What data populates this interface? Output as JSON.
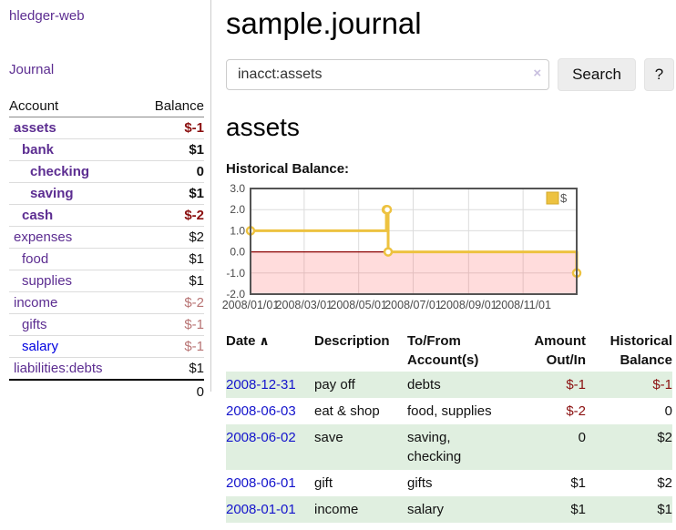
{
  "colors": {
    "purple": "#5c2d91",
    "blue": "#0000e0",
    "link_blue": "#1414cc",
    "neg_dark": "#8b1010",
    "neg_light": "#b87474",
    "row_green": "#e0efe0"
  },
  "app": {
    "title": "hledger-web"
  },
  "sidebar": {
    "journal_link": "Journal",
    "accounts": {
      "headers": [
        "Account",
        "Balance"
      ],
      "rows": [
        {
          "label": "assets",
          "balance": "$-1",
          "indent": 1,
          "bold": true,
          "link": "purple",
          "tone": "neg-dark"
        },
        {
          "label": "bank",
          "balance": "$1",
          "indent": 2,
          "bold": true,
          "link": "purple",
          "tone": ""
        },
        {
          "label": "checking",
          "balance": "0",
          "indent": 3,
          "bold": true,
          "link": "purple",
          "tone": ""
        },
        {
          "label": "saving",
          "balance": "$1",
          "indent": 3,
          "bold": true,
          "link": "purple",
          "tone": ""
        },
        {
          "label": "cash",
          "balance": "$-2",
          "indent": 2,
          "bold": true,
          "link": "purple",
          "tone": "neg-dark"
        },
        {
          "label": "expenses",
          "balance": "$2",
          "indent": 1,
          "bold": false,
          "link": "purple",
          "tone": ""
        },
        {
          "label": "food",
          "balance": "$1",
          "indent": 2,
          "bold": false,
          "link": "purple",
          "tone": ""
        },
        {
          "label": "supplies",
          "balance": "$1",
          "indent": 2,
          "bold": false,
          "link": "purple",
          "tone": ""
        },
        {
          "label": "income",
          "balance": "$-2",
          "indent": 1,
          "bold": false,
          "link": "purple",
          "tone": "neg-light"
        },
        {
          "label": "gifts",
          "balance": "$-1",
          "indent": 2,
          "bold": false,
          "link": "purple",
          "tone": "neg-light"
        },
        {
          "label": "salary",
          "balance": "$-1",
          "indent": 2,
          "bold": false,
          "link": "blue",
          "tone": "neg-light"
        },
        {
          "label": "liabilities:debts",
          "balance": "$1",
          "indent": 1,
          "bold": false,
          "link": "purple",
          "tone": ""
        }
      ],
      "total": "0"
    }
  },
  "main": {
    "title": "sample.journal",
    "search": {
      "value": "inacct:assets",
      "clear_icon": "×",
      "button_label": "Search",
      "help_label": "?"
    },
    "account_heading": "assets",
    "chart_label": "Historical Balance:"
  },
  "chart_data": {
    "type": "line",
    "title": "Historical Balance",
    "legend_position": "top-right",
    "grid": true,
    "x_range": [
      "2008-01-01",
      "2008-12-31"
    ],
    "ylim": [
      -2,
      3
    ],
    "y_ticks": [
      3,
      2,
      1,
      0,
      -1,
      -2
    ],
    "x_ticks": [
      {
        "date": "2008-01-01",
        "label": "2008/01/01"
      },
      {
        "date": "2008-03-01",
        "label": "2008/03/01"
      },
      {
        "date": "2008-05-01",
        "label": "2008/05/01"
      },
      {
        "date": "2008-07-01",
        "label": "2008/07/01"
      },
      {
        "date": "2008-09-01",
        "label": "2008/09/01"
      },
      {
        "date": "2008-11-01",
        "label": "2008/11/01"
      }
    ],
    "series": [
      {
        "name": "$",
        "color": "#edc240",
        "steps": true,
        "points": [
          [
            "2008-01-01",
            1
          ],
          [
            "2008-06-01",
            2
          ],
          [
            "2008-06-02",
            2
          ],
          [
            "2008-06-03",
            0
          ],
          [
            "2008-12-31",
            -1
          ]
        ]
      }
    ],
    "grid_color": "#dcdcdc",
    "border_color": "#545454",
    "zero_line_color": "#8b0000",
    "negative_fill": "rgba(255,80,80,0.2)",
    "tick_label_color": "#4a4a4a",
    "legend_label_color": "#545454"
  },
  "register": {
    "sort_icon": "∧",
    "headers": [
      "Date",
      "Description",
      "To/From Account(s)",
      "Amount Out/In",
      "Historical Balance"
    ],
    "rows": [
      {
        "date": "2008-12-31",
        "description": "pay off",
        "accounts": "debts",
        "amount": "$-1",
        "balance": "$-1"
      },
      {
        "date": "2008-06-03",
        "description": "eat & shop",
        "accounts": "food, supplies",
        "amount": "$-2",
        "balance": "0"
      },
      {
        "date": "2008-06-02",
        "description": "save",
        "accounts": "saving, checking",
        "amount": "0",
        "balance": "$2"
      },
      {
        "date": "2008-06-01",
        "description": "gift",
        "accounts": "gifts",
        "amount": "$1",
        "balance": "$2"
      },
      {
        "date": "2008-01-01",
        "description": "income",
        "accounts": "salary",
        "amount": "$1",
        "balance": "$1"
      }
    ]
  }
}
